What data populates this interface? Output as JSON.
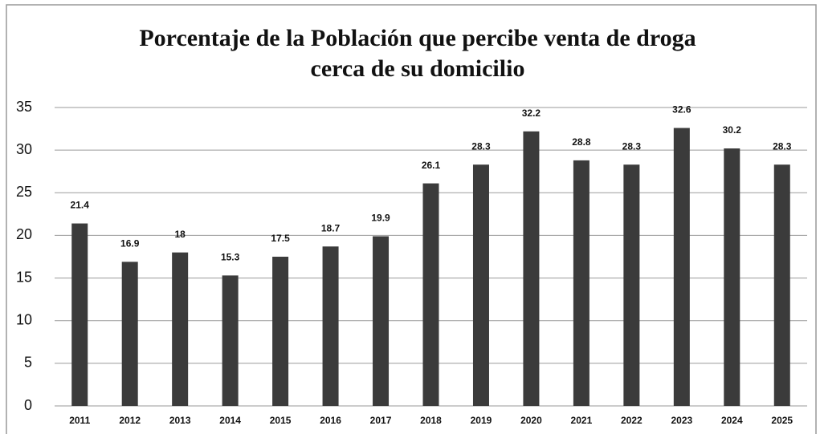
{
  "chart_data": {
    "type": "bar",
    "title": [
      "Porcentaje de la Población que percibe venta de droga",
      "cerca de su domicilio"
    ],
    "categories": [
      "2011",
      "2012",
      "2013",
      "2014",
      "2015",
      "2016",
      "2017",
      "2018",
      "2019",
      "2020",
      "2021",
      "2022",
      "2023",
      "2024",
      "2025"
    ],
    "values": [
      21.4,
      16.9,
      18,
      15.3,
      17.5,
      18.7,
      19.9,
      26.1,
      28.3,
      32.2,
      28.8,
      28.3,
      32.6,
      30.2,
      28.3
    ],
    "color": "#3b3b3b",
    "ylim": [
      0,
      35
    ],
    "yticks": [
      0,
      5,
      10,
      15,
      20,
      25,
      30,
      35
    ],
    "grid": true
  }
}
